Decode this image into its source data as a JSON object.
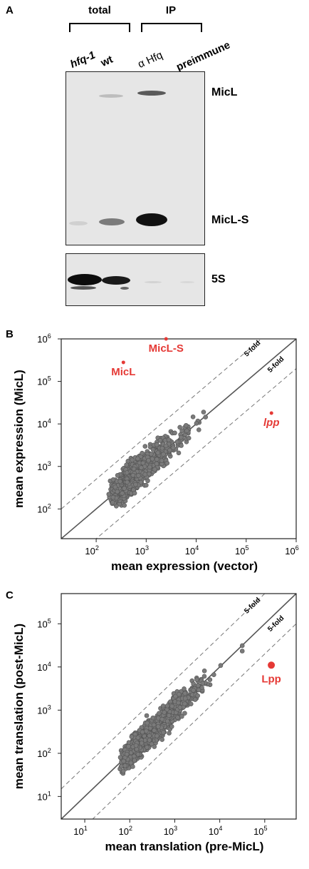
{
  "panel_a": {
    "letter": "A",
    "groups": {
      "total": "total",
      "ip": "IP"
    },
    "lanes": [
      "hfq-1",
      "wt",
      "α Hfq",
      "preimmune"
    ],
    "band_labels": {
      "micl": "MicL",
      "micl_s": "MicL-S",
      "s5": "5S"
    }
  },
  "chart_data": [
    {
      "panel": "B",
      "type": "scatter",
      "xlabel": "mean expression (vector)",
      "ylabel": "mean expression (MicL)",
      "scale": "log10",
      "xlim": [
        20,
        1000000
      ],
      "ylim": [
        20,
        1000000
      ],
      "x_ticks": [
        "10^2",
        "10^3",
        "10^4",
        "10^5",
        "10^6"
      ],
      "y_ticks": [
        "10^2",
        "10^3",
        "10^4",
        "10^5",
        "10^6"
      ],
      "reference_lines": [
        {
          "label": "",
          "ratio": 1,
          "style": "solid"
        },
        {
          "label": "5-fold",
          "ratio": 5,
          "style": "dashed"
        },
        {
          "label": "5-fold",
          "ratio": 0.2,
          "style": "dashed"
        }
      ],
      "highlighted": [
        {
          "label": "MicL-S",
          "x": 2500,
          "y": 1000000
        },
        {
          "label": "MicL",
          "x": 350,
          "y": 280000
        },
        {
          "label": "lpp",
          "x": 320000,
          "y": 18000,
          "italic": true
        }
      ],
      "colors": {
        "points": "#7a7a7a",
        "highlight": "#e53935"
      }
    },
    {
      "panel": "C",
      "type": "scatter",
      "xlabel": "mean translation (pre-MicL)",
      "ylabel": "mean translation (post-MicL)",
      "scale": "log10",
      "xlim": [
        3,
        500000
      ],
      "ylim": [
        3,
        500000
      ],
      "x_ticks": [
        "10^1",
        "10^2",
        "10^3",
        "10^4",
        "10^5"
      ],
      "y_ticks": [
        "10^1",
        "10^2",
        "10^3",
        "10^4",
        "10^5"
      ],
      "reference_lines": [
        {
          "label": "",
          "ratio": 1,
          "style": "solid"
        },
        {
          "label": "5-fold",
          "ratio": 5,
          "style": "dashed"
        },
        {
          "label": "5-fold",
          "ratio": 0.2,
          "style": "dashed"
        }
      ],
      "highlighted": [
        {
          "label": "Lpp",
          "x": 140000,
          "y": 11000,
          "italic": false
        }
      ],
      "colors": {
        "points": "#7a7a7a",
        "highlight": "#e53935"
      }
    }
  ]
}
